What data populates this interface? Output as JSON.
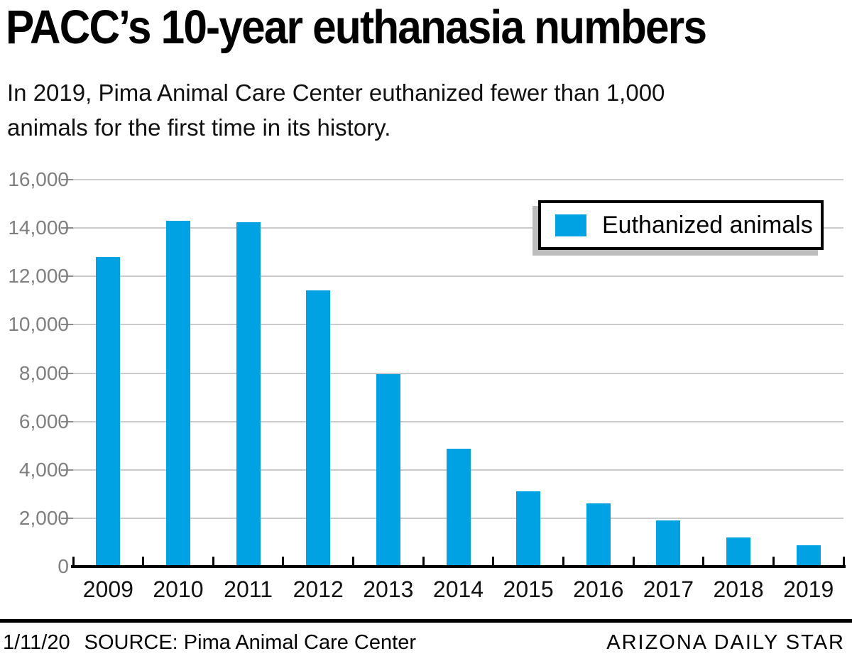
{
  "header": {
    "title": "PACC’s 10-year euthanasia numbers",
    "subtitle_line1": "In 2019, Pima Animal Care Center euthanized fewer than 1,000",
    "subtitle_line2": "animals for the first time in its history."
  },
  "legend": {
    "label": "Euthanized animals",
    "swatch_color": "#00a2e3"
  },
  "chart_data": {
    "type": "bar",
    "title": "PACC’s 10-year euthanasia numbers",
    "categories": [
      "2009",
      "2010",
      "2011",
      "2012",
      "2013",
      "2014",
      "2015",
      "2016",
      "2017",
      "2018",
      "2019"
    ],
    "series": [
      {
        "name": "Euthanized animals",
        "values": [
          12800,
          14310,
          14230,
          11430,
          7950,
          4870,
          3120,
          2620,
          1920,
          1210,
          880
        ]
      }
    ],
    "xlabel": "",
    "ylabel": "",
    "ylim": [
      0,
      16000
    ],
    "ytick_interval": 2000,
    "ytick_labels": [
      "0",
      "2,000",
      "4,000",
      "6,000",
      "8,000",
      "10,000",
      "12,000",
      "14,000",
      "16,000"
    ],
    "grid": "horizontal",
    "legend_position": "top-right",
    "bar_color": "#00a2e3"
  },
  "footer": {
    "date": "1/11/20",
    "source": "SOURCE: Pima Animal Care Center",
    "credit": "ARIZONA DAILY STAR"
  },
  "colors": {
    "bar": "#00a2e3",
    "gridline": "#cbcbcb",
    "y_tick": "#8a8a8a",
    "y_label_text": "#7f7f7f",
    "axis": "#000000",
    "legend_shadow": "#bdbdbd"
  }
}
